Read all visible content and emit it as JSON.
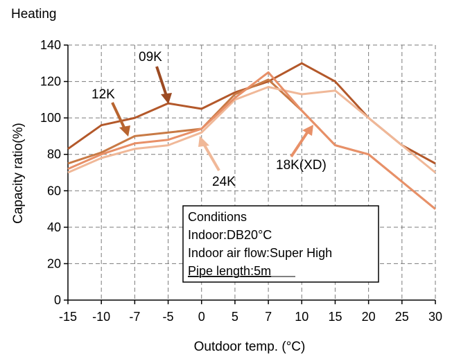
{
  "chart_data": {
    "type": "line",
    "title": "Heating",
    "xlabel": "Outdoor temp. (°C)",
    "ylabel": "Capacity ratio(%)",
    "ylim": [
      0,
      140
    ],
    "y_ticks": [
      "0",
      "20",
      "40",
      "60",
      "80",
      "100",
      "120",
      "140"
    ],
    "categories": [
      "-15",
      "-10",
      "-7",
      "-5",
      "0",
      "5",
      "7",
      "10",
      "15",
      "20",
      "25",
      "30"
    ],
    "grid": true,
    "series": [
      {
        "name": "09K",
        "color": "#b3582a",
        "values": [
          83,
          96,
          100,
          108,
          105,
          114,
          120,
          130,
          120,
          100,
          85,
          75
        ]
      },
      {
        "name": "12K",
        "color": "#c87a45",
        "values": [
          75,
          81,
          90,
          92,
          94,
          113,
          121,
          104,
          85,
          80,
          65,
          50
        ]
      },
      {
        "name": "24K",
        "color": "#f0b898",
        "values": [
          70,
          78,
          83,
          85,
          92,
          110,
          117,
          113,
          115,
          100,
          85,
          70
        ]
      },
      {
        "name": "18K(XD)",
        "color": "#e89068",
        "values": [
          72,
          80,
          86,
          88,
          94,
          111,
          125,
          104,
          85,
          80,
          65,
          50
        ]
      }
    ],
    "annotations": [
      "09K",
      "12K",
      "24K",
      "18K(XD)"
    ],
    "conditions": {
      "title": "Conditions",
      "lines": [
        "Indoor:DB20°C",
        "Indoor air flow:Super High",
        "Pipe length:5m"
      ]
    }
  }
}
